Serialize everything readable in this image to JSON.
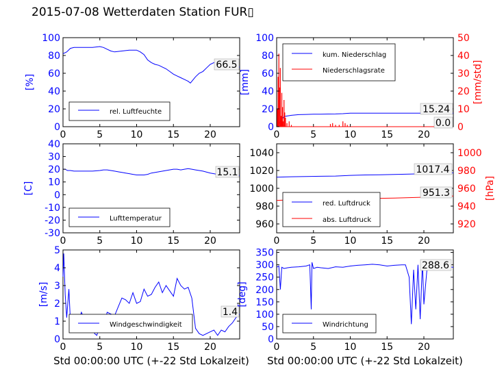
{
  "page": {
    "title": "2015-07-08 Wetterdaten Station FUR▯"
  },
  "chart_data": [
    {
      "type": "line",
      "panel": "top-left",
      "x": [
        0,
        0.5,
        1,
        1.5,
        2,
        3,
        4,
        5,
        5.5,
        6,
        6.5,
        7,
        8,
        9,
        10,
        10.5,
        11,
        11.5,
        12,
        12.5,
        13,
        13.5,
        14,
        14.5,
        15,
        15.5,
        16,
        16.5,
        17,
        17.3,
        17.6,
        18,
        18.5,
        19,
        19.5,
        20,
        20.5,
        21,
        21.5,
        22,
        22.5,
        23,
        24
      ],
      "y": [
        82,
        84,
        88,
        89,
        89,
        89,
        89,
        90,
        89,
        87,
        85,
        84,
        85,
        86,
        86,
        84,
        81,
        75,
        72,
        70,
        69,
        67,
        65,
        62,
        59,
        57,
        55,
        53,
        51,
        49,
        52,
        56,
        60,
        62,
        66,
        70,
        72,
        70,
        72,
        68,
        67,
        66,
        67
      ],
      "series": [
        {
          "name": "rel. Luftfeuchte",
          "color": "#0000ff"
        }
      ],
      "ylabel": "[%]",
      "xlim": [
        0,
        24
      ],
      "ylim": [
        0,
        100
      ],
      "xticks": [
        0,
        5,
        10,
        15,
        20
      ],
      "yticks": [
        0,
        20,
        40,
        60,
        80,
        100
      ],
      "annotation": "66.5",
      "legend": "lower-left"
    },
    {
      "type": "line",
      "panel": "top-right",
      "x": [
        0,
        1,
        2,
        3,
        4,
        5,
        6,
        7,
        8,
        9,
        10,
        11,
        12,
        13,
        14,
        15,
        16,
        17,
        18,
        19,
        20,
        21,
        22,
        23,
        24
      ],
      "series": [
        {
          "name": "kum. Niederschlag",
          "color": "#0000ff",
          "axis": "left",
          "y": [
            0,
            11.5,
            12.8,
            13.5,
            13.8,
            14,
            14.1,
            14.2,
            14.3,
            14.6,
            15.24,
            15.24,
            15.24,
            15.24,
            15.24,
            15.24,
            15.24,
            15.24,
            15.24,
            15.24,
            15.24,
            15.24,
            15.24,
            15.24,
            15.24
          ]
        },
        {
          "name": "Niederschlagsrate",
          "color": "#ff0000",
          "axis": "right",
          "spikes": [
            [
              0.1,
              10
            ],
            [
              0.2,
              28
            ],
            [
              0.25,
              15
            ],
            [
              0.3,
              41
            ],
            [
              0.4,
              22
            ],
            [
              0.5,
              33
            ],
            [
              0.6,
              6
            ],
            [
              0.7,
              19
            ],
            [
              0.8,
              11
            ],
            [
              0.9,
              3
            ],
            [
              1.0,
              15
            ],
            [
              1.1,
              8
            ],
            [
              1.2,
              5
            ],
            [
              1.4,
              2
            ],
            [
              1.7,
              3
            ],
            [
              2.0,
              1
            ],
            [
              7.3,
              1.5
            ],
            [
              7.6,
              2
            ],
            [
              8.0,
              1
            ],
            [
              8.5,
              1
            ],
            [
              9.0,
              3
            ],
            [
              9.3,
              2
            ],
            [
              9.6,
              1
            ]
          ],
          "y": [
            0,
            0,
            0,
            0,
            0,
            0,
            0,
            0,
            0,
            0,
            0,
            0,
            0,
            0,
            0,
            0,
            0,
            0,
            0,
            0,
            0,
            0,
            0,
            0,
            0
          ]
        }
      ],
      "ylabel": "[mm]",
      "y2label": "[mm/std]",
      "xlim": [
        0,
        24
      ],
      "ylim": [
        0,
        100
      ],
      "y2lim": [
        0,
        50
      ],
      "xticks": [
        0,
        5,
        10,
        15,
        20
      ],
      "yticks": [
        0,
        20,
        40,
        60,
        80,
        100
      ],
      "y2ticks": [
        0,
        10,
        20,
        30,
        40,
        50
      ],
      "annotations": [
        "15.24",
        "0.0"
      ],
      "legend": "upper-left"
    },
    {
      "type": "line",
      "panel": "middle-left",
      "x": [
        0,
        0.3,
        0.6,
        1,
        1.5,
        2,
        3,
        4,
        5,
        5.5,
        6,
        6.5,
        7,
        7.5,
        8,
        8.5,
        9,
        9.5,
        10,
        10.5,
        11,
        11.5,
        12,
        13,
        14,
        15,
        15.5,
        16,
        16.5,
        17,
        17.5,
        18,
        19,
        20,
        21,
        22,
        23,
        24
      ],
      "y": [
        20,
        20,
        19,
        19,
        18.5,
        18.5,
        18.5,
        18.5,
        19,
        19.5,
        19.5,
        19,
        18.5,
        18,
        17.5,
        17,
        16.5,
        16,
        15.5,
        15.5,
        15.5,
        16,
        17,
        18,
        19,
        20,
        20,
        19.5,
        20,
        20.5,
        20,
        19.5,
        18.5,
        17,
        16,
        15.5,
        15.2,
        15.1
      ],
      "series": [
        {
          "name": "Lufttemperatur",
          "color": "#0000ff"
        }
      ],
      "ylabel": "[C]",
      "xlim": [
        0,
        24
      ],
      "ylim": [
        -30,
        40
      ],
      "xticks": [
        0,
        5,
        10,
        15,
        20
      ],
      "yticks": [
        -30,
        -20,
        -10,
        0,
        10,
        20,
        30,
        40
      ],
      "annotation": "15.1",
      "legend": "lower-left"
    },
    {
      "type": "line",
      "panel": "middle-right",
      "x": [
        0,
        2,
        4,
        6,
        8,
        10,
        12,
        14,
        16,
        18,
        20,
        22,
        24
      ],
      "series": [
        {
          "name": "red. Luftdruck",
          "color": "#0000ff",
          "axis": "left",
          "y": [
            1012.5,
            1013,
            1013.2,
            1013.5,
            1013.8,
            1014.5,
            1015,
            1015.2,
            1015.5,
            1016,
            1016.5,
            1017,
            1017.4
          ]
        },
        {
          "name": "abs. Luftdruck",
          "color": "#ff0000",
          "axis": "right",
          "y": [
            946.5,
            947,
            947.3,
            947.5,
            947.8,
            948.2,
            948.5,
            948.8,
            949,
            949.5,
            950,
            950.8,
            951.3
          ]
        }
      ],
      "ylabel": "",
      "y2label": "[hPa]",
      "xlim": [
        0,
        24
      ],
      "ylim": [
        950,
        1050
      ],
      "y2lim": [
        910,
        1010
      ],
      "xticks": [
        0,
        5,
        10,
        15,
        20
      ],
      "yticks": [
        960,
        980,
        1000,
        1020,
        1040
      ],
      "y2ticks": [
        920,
        940,
        960,
        980,
        1000
      ],
      "annotations": [
        "1017.4",
        "951.3"
      ],
      "legend": "lower-left"
    },
    {
      "type": "line",
      "panel": "bottom-left",
      "x": [
        0,
        0.1,
        0.3,
        0.5,
        0.8,
        1,
        1.5,
        2,
        2.5,
        3,
        3.5,
        4,
        4.3,
        4.6,
        5,
        5.3,
        5.6,
        6,
        6.5,
        7,
        7.5,
        8,
        8.5,
        9,
        9.5,
        10,
        10.5,
        11,
        11.5,
        12,
        12.5,
        13,
        13.5,
        14,
        14.5,
        15,
        15.5,
        16,
        16.5,
        17,
        17.5,
        18,
        18.5,
        19,
        19.5,
        20,
        20.5,
        21,
        21.5,
        22,
        22.5,
        23,
        23.5,
        24
      ],
      "y": [
        3.5,
        4.8,
        2.5,
        1.2,
        2.8,
        1.0,
        1.3,
        0.9,
        1.5,
        1.0,
        1.0,
        0.9,
        0.3,
        0.2,
        0.8,
        1.1,
        0.9,
        1.5,
        1.4,
        1.3,
        1.8,
        2.3,
        2.2,
        2.0,
        2.6,
        2.0,
        2.1,
        2.8,
        2.4,
        2.5,
        2.9,
        3.2,
        2.6,
        3.0,
        2.7,
        2.4,
        3.4,
        3.0,
        2.8,
        2.9,
        2.3,
        0.6,
        0.3,
        0.2,
        0.3,
        0.4,
        0.5,
        0.2,
        0.5,
        0.4,
        0.7,
        0.9,
        1.2,
        1.4
      ],
      "series": [
        {
          "name": "Windgeschwindigkeit",
          "color": "#0000ff"
        }
      ],
      "ylabel": "[m/s]",
      "xlabel": "Std 00:00:00 UTC (+-22 Std Lokalzeit)",
      "xlim": [
        0,
        24
      ],
      "ylim": [
        0,
        5
      ],
      "xticks": [
        0,
        5,
        10,
        15,
        20
      ],
      "yticks": [
        0,
        1,
        2,
        3,
        4,
        5
      ],
      "annotation": "1.4",
      "legend": "lower-center"
    },
    {
      "type": "line",
      "panel": "bottom-right",
      "x": [
        0,
        0.3,
        0.5,
        0.7,
        1,
        1.5,
        2,
        3,
        4,
        4.5,
        4.7,
        4.8,
        5,
        5.5,
        6,
        7,
        8,
        9,
        10,
        11,
        12,
        13,
        14,
        15,
        16,
        17,
        17.5,
        18,
        18.3,
        18.6,
        18.9,
        19.2,
        19.5,
        19.8,
        20,
        20.5,
        21,
        22,
        23,
        24
      ],
      "y": [
        290,
        295,
        200,
        290,
        285,
        288,
        290,
        292,
        295,
        300,
        120,
        310,
        285,
        290,
        288,
        285,
        292,
        290,
        295,
        298,
        300,
        302,
        300,
        295,
        298,
        300,
        300,
        250,
        60,
        280,
        120,
        300,
        80,
        310,
        140,
        310,
        300,
        295,
        292,
        290
      ],
      "series": [
        {
          "name": "Windrichtung",
          "color": "#0000ff"
        }
      ],
      "ylabel": "[deg]",
      "xlabel": "Std 00:00:00 UTC (+-22 Std Lokalzeit)",
      "xlim": [
        0,
        24
      ],
      "ylim": [
        0,
        360
      ],
      "xticks": [
        0,
        5,
        10,
        15,
        20
      ],
      "yticks": [
        0,
        50,
        100,
        150,
        200,
        250,
        300,
        350
      ],
      "annotation": "288.6",
      "legend": "lower-left"
    }
  ]
}
